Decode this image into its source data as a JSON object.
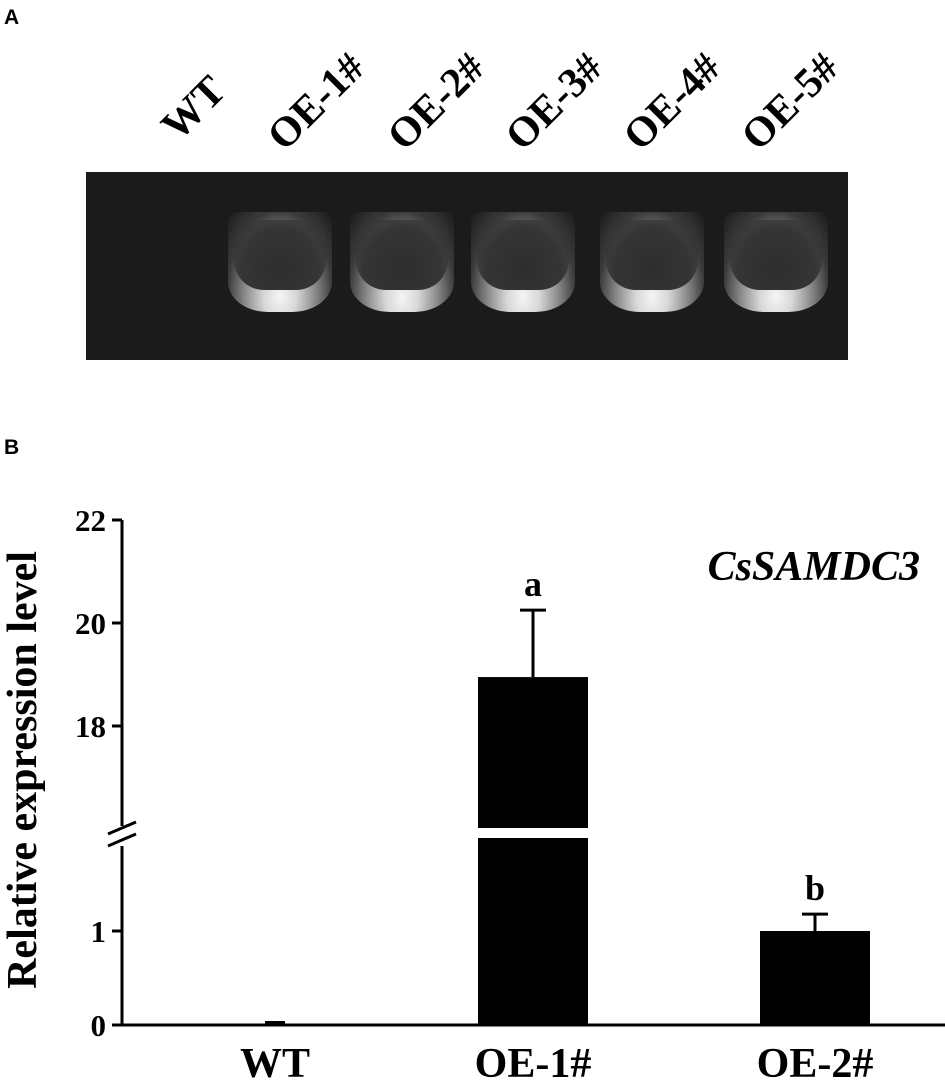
{
  "panels": {
    "a_label": "A",
    "b_label": "B"
  },
  "gel": {
    "lanes": [
      "WT",
      "OE-1#",
      "OE-2#",
      "OE-3#",
      "OE-4#",
      "OE-5#"
    ],
    "band_present": [
      false,
      true,
      true,
      true,
      true,
      true
    ]
  },
  "chart_data": {
    "type": "bar",
    "title": "CsSAMDC3",
    "ylabel": "Relative expression level",
    "xlabel": "",
    "categories": [
      "WT",
      "OE-1#",
      "OE-2#"
    ],
    "values": [
      0.02,
      18.95,
      1.0
    ],
    "errors": [
      0.0,
      1.3,
      0.18
    ],
    "significance": [
      "",
      "a",
      "b"
    ],
    "axis_break": true,
    "y_lower_segment": [
      0,
      1.5
    ],
    "y_upper_segment": [
      16.5,
      22
    ],
    "yticks": [
      "0",
      "1",
      "18",
      "20",
      "22"
    ],
    "ytick_values": [
      0,
      1,
      18,
      20,
      22
    ],
    "bar_color": "#000000",
    "grid": false
  }
}
